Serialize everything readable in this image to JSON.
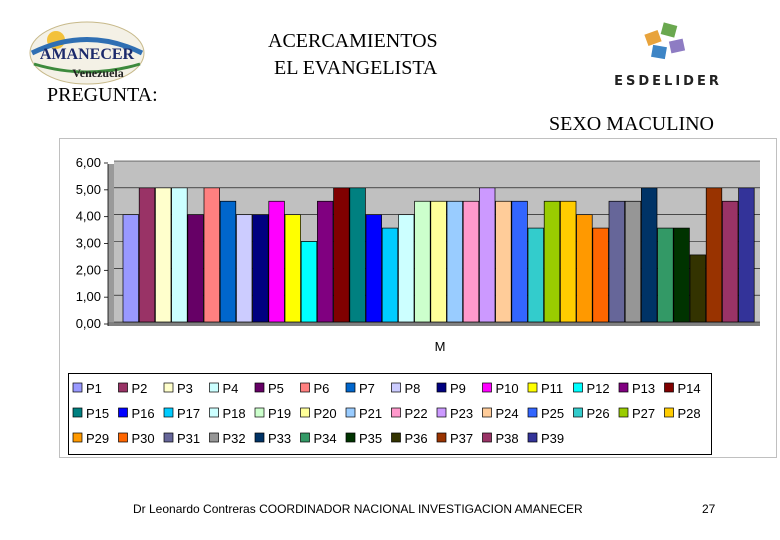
{
  "header": {
    "logo_left_line1": "AMANECER",
    "logo_left_line2": "Venezuela",
    "pregunta": "PREGUNTA:",
    "title_line1": "ACERCAMIENTOS",
    "title_line2": "EL EVANGELISTA",
    "logo_right_text": "ESDELIDER",
    "sexo": "SEXO MACULINO"
  },
  "footer": {
    "text": "Dr Leonardo Contreras   COORDINADOR NACIONAL INVESTIGACION AMANECER",
    "page": "27"
  },
  "chart_data": {
    "type": "bar",
    "title": "",
    "xlabel": "M",
    "ylabel": "",
    "ylim": [
      0,
      6
    ],
    "yticks": [
      "0,00",
      "1,00",
      "2,00",
      "3,00",
      "4,00",
      "5,00",
      "6,00"
    ],
    "grid": true,
    "legend_position": "bottom",
    "categories": [
      "M"
    ],
    "series": [
      {
        "name": "P1",
        "values": [
          4.0
        ],
        "color": "#9999ff"
      },
      {
        "name": "P2",
        "values": [
          5.0
        ],
        "color": "#993366"
      },
      {
        "name": "P3",
        "values": [
          5.0
        ],
        "color": "#ffffcc"
      },
      {
        "name": "P4",
        "values": [
          5.0
        ],
        "color": "#ccffff"
      },
      {
        "name": "P5",
        "values": [
          4.0
        ],
        "color": "#660066"
      },
      {
        "name": "P6",
        "values": [
          5.0
        ],
        "color": "#ff8080"
      },
      {
        "name": "P7",
        "values": [
          4.5
        ],
        "color": "#0066cc"
      },
      {
        "name": "P8",
        "values": [
          4.0
        ],
        "color": "#ccccff"
      },
      {
        "name": "P9",
        "values": [
          4.0
        ],
        "color": "#000080"
      },
      {
        "name": "P10",
        "values": [
          4.5
        ],
        "color": "#ff00ff"
      },
      {
        "name": "P11",
        "values": [
          4.0
        ],
        "color": "#ffff00"
      },
      {
        "name": "P12",
        "values": [
          3.0
        ],
        "color": "#00ffff"
      },
      {
        "name": "P13",
        "values": [
          4.5
        ],
        "color": "#800080"
      },
      {
        "name": "P14",
        "values": [
          5.0
        ],
        "color": "#800000"
      },
      {
        "name": "P15",
        "values": [
          5.0
        ],
        "color": "#008080"
      },
      {
        "name": "P16",
        "values": [
          4.0
        ],
        "color": "#0000ff"
      },
      {
        "name": "P17",
        "values": [
          3.5
        ],
        "color": "#00ccff"
      },
      {
        "name": "P18",
        "values": [
          4.0
        ],
        "color": "#ccffff"
      },
      {
        "name": "P19",
        "values": [
          4.5
        ],
        "color": "#ccffcc"
      },
      {
        "name": "P20",
        "values": [
          4.5
        ],
        "color": "#ffff99"
      },
      {
        "name": "P21",
        "values": [
          4.5
        ],
        "color": "#99ccff"
      },
      {
        "name": "P22",
        "values": [
          4.5
        ],
        "color": "#ff99cc"
      },
      {
        "name": "P23",
        "values": [
          5.0
        ],
        "color": "#cc99ff"
      },
      {
        "name": "P24",
        "values": [
          4.5
        ],
        "color": "#ffcc99"
      },
      {
        "name": "P25",
        "values": [
          4.5
        ],
        "color": "#3366ff"
      },
      {
        "name": "P26",
        "values": [
          3.5
        ],
        "color": "#33cccc"
      },
      {
        "name": "P27",
        "values": [
          4.5
        ],
        "color": "#99cc00"
      },
      {
        "name": "P28",
        "values": [
          4.5
        ],
        "color": "#ffcc00"
      },
      {
        "name": "P29",
        "values": [
          4.0
        ],
        "color": "#ff9900"
      },
      {
        "name": "P30",
        "values": [
          3.5
        ],
        "color": "#ff6600"
      },
      {
        "name": "P31",
        "values": [
          4.5
        ],
        "color": "#666699"
      },
      {
        "name": "P32",
        "values": [
          4.5
        ],
        "color": "#969696"
      },
      {
        "name": "P33",
        "values": [
          5.0
        ],
        "color": "#003366"
      },
      {
        "name": "P34",
        "values": [
          3.5
        ],
        "color": "#339966"
      },
      {
        "name": "P35",
        "values": [
          3.5
        ],
        "color": "#003300"
      },
      {
        "name": "P36",
        "values": [
          2.5
        ],
        "color": "#333300"
      },
      {
        "name": "P37",
        "values": [
          5.0
        ],
        "color": "#993300"
      },
      {
        "name": "P38",
        "values": [
          4.5
        ],
        "color": "#993366"
      },
      {
        "name": "P39",
        "values": [
          5.0
        ],
        "color": "#333399"
      }
    ]
  }
}
